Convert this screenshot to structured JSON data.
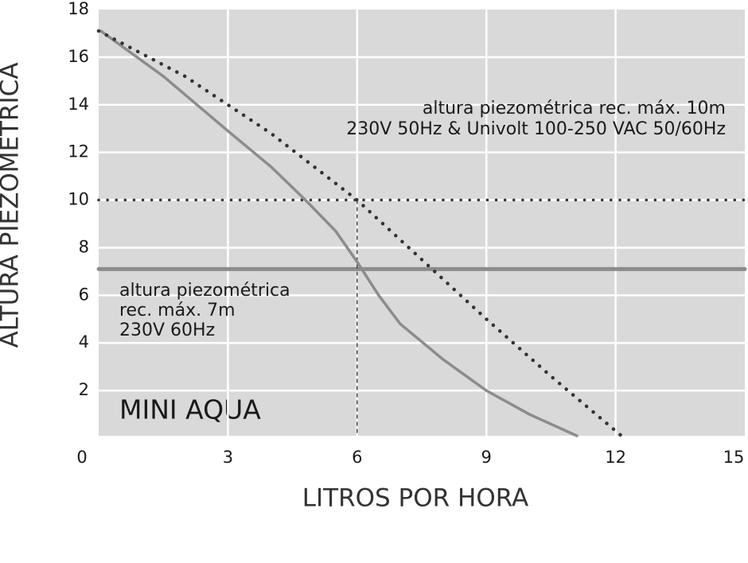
{
  "chart_data": {
    "type": "line",
    "title": "MINI AQUA",
    "x_label": "LITROS POR HORA",
    "y_label": "ALTURA PIEZOMETRICA",
    "xlim": [
      0,
      15
    ],
    "xticks": [
      0,
      3,
      6,
      9,
      12,
      15
    ],
    "ylim": [
      0,
      18
    ],
    "yticks": [
      2,
      4,
      6,
      8,
      10,
      12,
      14,
      16,
      18
    ],
    "grid": true,
    "series": [
      {
        "color": "#8c8c8c",
        "style": "solid",
        "x": [
          0.05,
          1.5,
          3,
          4,
          4.8,
          5.5,
          6,
          6.5,
          7,
          8,
          9,
          10,
          11.1
        ],
        "values": [
          17.1,
          15.2,
          12.9,
          11.4,
          10,
          8.7,
          7.4,
          6,
          4.8,
          3.3,
          2,
          1,
          0.1
        ]
      },
      {
        "color": "#333333",
        "style": "dotted",
        "x": [
          0,
          2,
          4,
          6,
          7.5,
          9,
          10.5,
          12.2
        ],
        "values": [
          17.1,
          15.2,
          12.8,
          10,
          7.5,
          5,
          2.6,
          0
        ]
      }
    ],
    "reference_lines": [
      {
        "value": 10,
        "color": "#333333",
        "style": "dotted"
      },
      {
        "value": 7.1,
        "color": "#8c8c8c",
        "style": "solid"
      }
    ],
    "vertical_line": {
      "x": 6,
      "to": 10
    },
    "annotations": [
      {
        "lines": [
          "altura piezométrica rec. máx. 10m",
          "230V 50Hz & Univolt 100-250 VAC 50/60Hz"
        ]
      },
      {
        "lines": [
          "altura piezométrica",
          "rec. máx. 7m",
          "230V 60Hz"
        ]
      }
    ]
  }
}
